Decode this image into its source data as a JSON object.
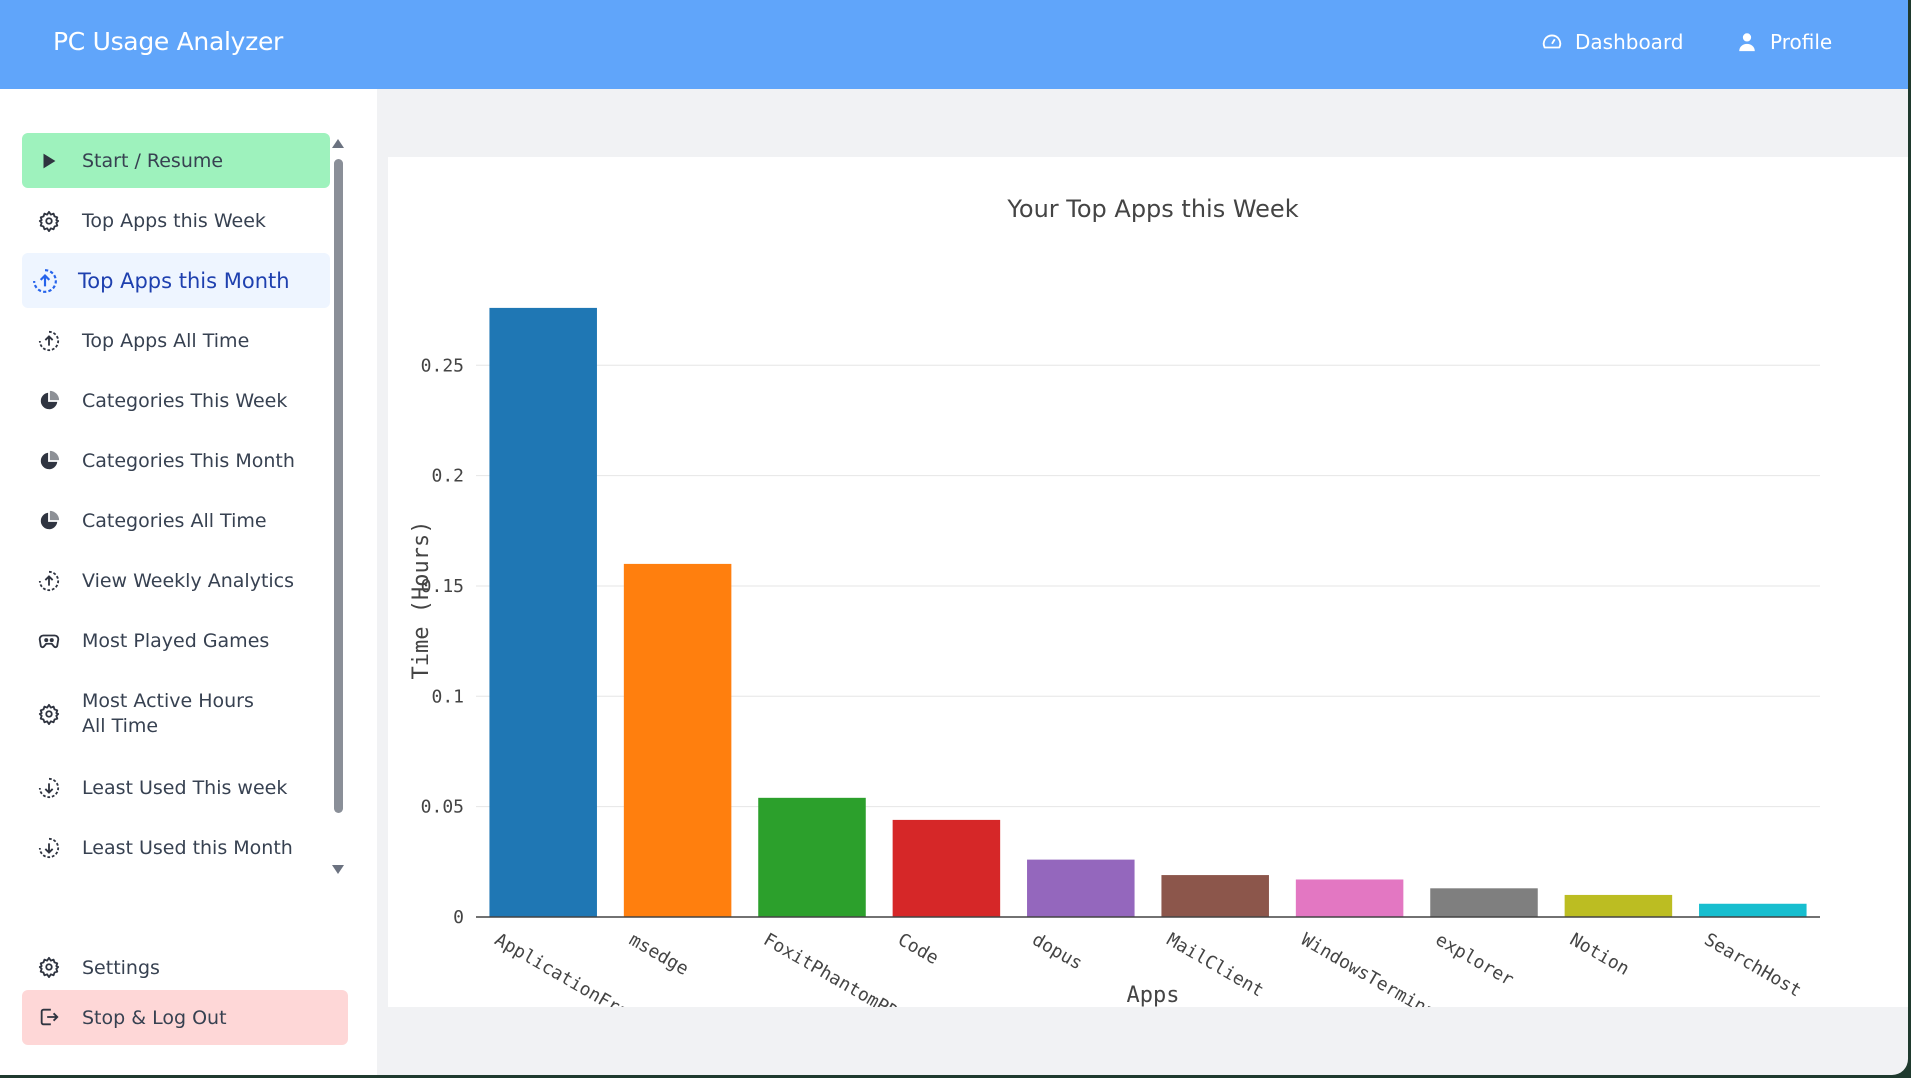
{
  "app": {
    "title": "PC Usage Analyzer",
    "nav": [
      {
        "label": "Dashboard",
        "icon": "dashboard-gauge-icon"
      },
      {
        "label": "Profile",
        "icon": "user-icon"
      }
    ]
  },
  "sidebar": {
    "items": [
      {
        "label": "Start / Resume",
        "icon": "play-icon",
        "state": "start"
      },
      {
        "label": "Top Apps this Week",
        "icon": "gear-icon"
      },
      {
        "label": "Top Apps this Month",
        "icon": "circle-arrow-up-icon",
        "state": "active"
      },
      {
        "label": "Top Apps All Time",
        "icon": "circle-arrow-up-icon"
      },
      {
        "label": "Categories This Week",
        "icon": "pie-chart-icon"
      },
      {
        "label": "Categories This Month",
        "icon": "pie-chart-icon"
      },
      {
        "label": "Categories All Time",
        "icon": "pie-chart-icon"
      },
      {
        "label": "View Weekly Analytics",
        "icon": "circle-arrow-up-icon"
      },
      {
        "label": "Most Played Games",
        "icon": "gamepad-icon"
      },
      {
        "label": "Most Active Hours All Time",
        "icon": "gear-icon"
      },
      {
        "label": "Least Used This week",
        "icon": "circle-arrow-down-icon"
      },
      {
        "label": "Least Used this Month",
        "icon": "circle-arrow-down-icon"
      }
    ],
    "settings_label": "Settings",
    "logout_label": "Stop & Log Out"
  },
  "colors": {
    "topbar": "#60a5fa",
    "start_button": "#9ef2bd",
    "logout_button": "#fed7d7",
    "active_item": "#eef5ff"
  },
  "chart_data": {
    "type": "bar",
    "title": "Your Top Apps this Week",
    "xlabel": "Apps",
    "ylabel": "Time (Hours)",
    "categories": [
      "ApplicationFrameHost",
      "msedge",
      "FoxitPhantomPDF",
      "Code",
      "dopus",
      "MailClient",
      "WindowsTerminal",
      "explorer",
      "Notion",
      "SearchHost"
    ],
    "values": [
      0.276,
      0.16,
      0.054,
      0.044,
      0.026,
      0.019,
      0.017,
      0.013,
      0.01,
      0.006
    ],
    "colors": [
      "#1f77b4",
      "#ff7f0e",
      "#2ca02c",
      "#d62728",
      "#9467bd",
      "#8c564b",
      "#e377c2",
      "#7f7f7f",
      "#bcbd22",
      "#17becf"
    ],
    "yticks": [
      0,
      0.05,
      0.1,
      0.15,
      0.2,
      0.25
    ],
    "ytick_labels": [
      "0",
      "0.05",
      "0.1",
      "0.15",
      "0.2",
      "0.25"
    ],
    "ylim": [
      0,
      0.29
    ],
    "grid": true,
    "legend": "none"
  }
}
